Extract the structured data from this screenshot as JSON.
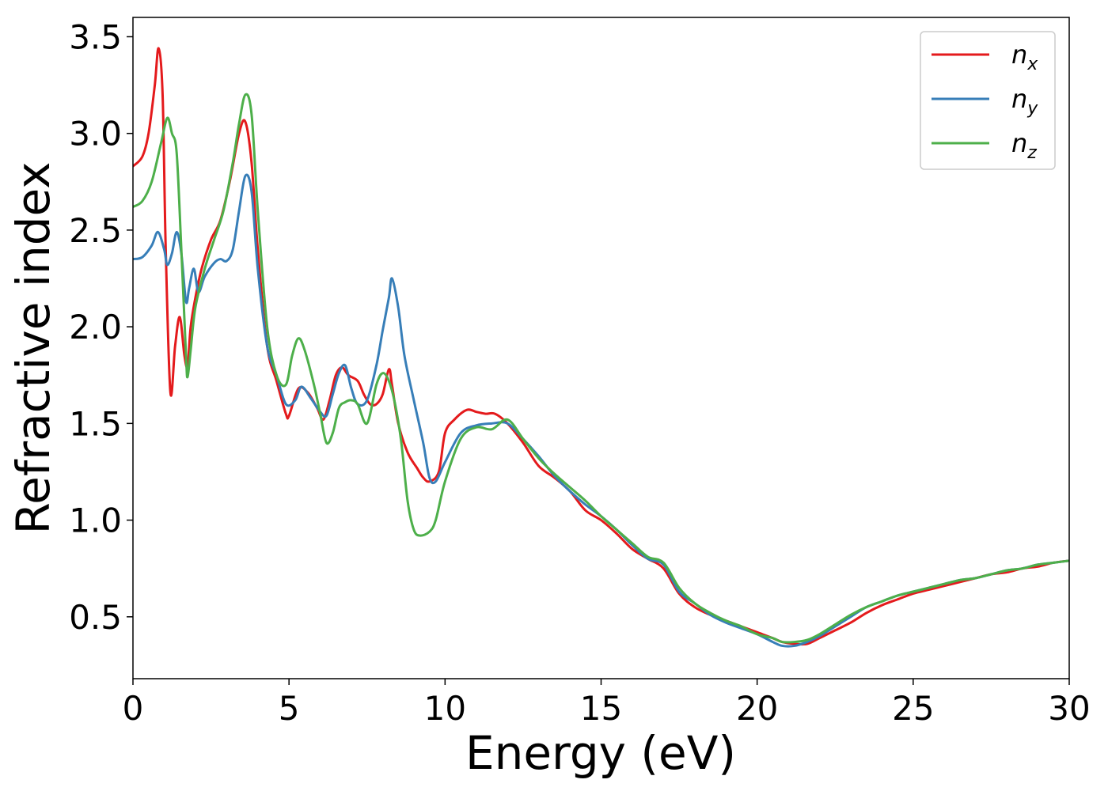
{
  "chart_data": {
    "type": "line",
    "title": "",
    "xlabel": "Energy (eV)",
    "ylabel": "Refractive index",
    "xlim": [
      0,
      30
    ],
    "ylim": [
      0.18,
      3.6
    ],
    "xticks": [
      0,
      5,
      10,
      15,
      20,
      25,
      30
    ],
    "xtick_labels": [
      "0",
      "5",
      "10",
      "15",
      "20",
      "25",
      "30"
    ],
    "yticks": [
      0.5,
      1.0,
      1.5,
      2.0,
      2.5,
      3.0,
      3.5
    ],
    "ytick_labels": [
      "0.5",
      "1.0",
      "1.5",
      "2.0",
      "2.5",
      "3.0",
      "3.5"
    ],
    "grid": false,
    "legend_position": "top-right",
    "series": [
      {
        "name": "n_x",
        "label_base": "n",
        "label_sub": "x",
        "color": "#e41a1c",
        "x": [
          0,
          0.3,
          0.5,
          0.7,
          0.82,
          0.95,
          1.05,
          1.2,
          1.35,
          1.5,
          1.65,
          1.75,
          1.85,
          2.0,
          2.2,
          2.5,
          2.8,
          3.1,
          3.4,
          3.6,
          3.8,
          4.0,
          4.3,
          4.6,
          4.9,
          5.0,
          5.3,
          5.6,
          5.9,
          6.1,
          6.3,
          6.5,
          6.7,
          6.9,
          7.2,
          7.4,
          7.6,
          7.8,
          8.0,
          8.2,
          8.3,
          8.5,
          8.8,
          9.1,
          9.3,
          9.5,
          9.8,
          10.0,
          10.3,
          10.7,
          11.0,
          11.3,
          11.6,
          12.0,
          12.5,
          13.0,
          13.5,
          14.0,
          14.5,
          15.0,
          15.5,
          16.0,
          16.5,
          17.0,
          17.5,
          18.0,
          18.5,
          19.0,
          19.5,
          20.0,
          20.5,
          20.8,
          21.2,
          21.6,
          22.0,
          22.5,
          23.0,
          23.5,
          24.0,
          24.5,
          25.0,
          25.5,
          26.0,
          26.5,
          27.0,
          27.5,
          28.0,
          28.5,
          29.0,
          29.5,
          30.0
        ],
        "y": [
          2.83,
          2.88,
          3.0,
          3.25,
          3.44,
          3.2,
          2.4,
          1.66,
          1.9,
          2.05,
          1.85,
          1.8,
          2.0,
          2.15,
          2.3,
          2.45,
          2.55,
          2.75,
          3.0,
          3.06,
          2.85,
          2.4,
          1.9,
          1.72,
          1.55,
          1.54,
          1.68,
          1.66,
          1.58,
          1.52,
          1.62,
          1.75,
          1.79,
          1.75,
          1.72,
          1.65,
          1.6,
          1.6,
          1.65,
          1.78,
          1.7,
          1.5,
          1.35,
          1.27,
          1.22,
          1.2,
          1.25,
          1.45,
          1.52,
          1.57,
          1.56,
          1.55,
          1.55,
          1.5,
          1.4,
          1.28,
          1.22,
          1.15,
          1.05,
          1.0,
          0.93,
          0.85,
          0.8,
          0.75,
          0.62,
          0.55,
          0.51,
          0.48,
          0.45,
          0.42,
          0.39,
          0.37,
          0.36,
          0.36,
          0.39,
          0.43,
          0.47,
          0.52,
          0.56,
          0.59,
          0.62,
          0.64,
          0.66,
          0.68,
          0.7,
          0.72,
          0.73,
          0.75,
          0.76,
          0.78,
          0.79
        ]
      },
      {
        "name": "n_y",
        "label_base": "n",
        "label_sub": "y",
        "color": "#377eb8",
        "x": [
          0,
          0.3,
          0.6,
          0.8,
          1.0,
          1.1,
          1.25,
          1.4,
          1.55,
          1.7,
          1.8,
          1.95,
          2.1,
          2.3,
          2.6,
          2.8,
          3.0,
          3.2,
          3.4,
          3.6,
          3.8,
          4.0,
          4.3,
          4.6,
          4.9,
          5.2,
          5.4,
          5.7,
          6.0,
          6.2,
          6.4,
          6.6,
          6.8,
          7.0,
          7.2,
          7.5,
          7.8,
          8.0,
          8.2,
          8.3,
          8.5,
          8.7,
          9.0,
          9.3,
          9.5,
          9.7,
          10.0,
          10.5,
          11.0,
          11.5,
          12.0,
          12.5,
          13.0,
          13.5,
          14.0,
          14.5,
          15.0,
          15.5,
          16.0,
          16.5,
          17.0,
          17.5,
          18.0,
          18.5,
          19.0,
          19.5,
          20.0,
          20.5,
          20.8,
          21.2,
          21.6,
          22.0,
          22.5,
          23.0,
          23.5,
          24.0,
          24.5,
          25.0,
          25.5,
          26.0,
          26.5,
          27.0,
          27.5,
          28.0,
          28.5,
          29.0,
          29.5,
          30.0
        ],
        "y": [
          2.35,
          2.36,
          2.42,
          2.49,
          2.4,
          2.32,
          2.38,
          2.49,
          2.38,
          2.13,
          2.2,
          2.3,
          2.18,
          2.26,
          2.33,
          2.35,
          2.34,
          2.4,
          2.6,
          2.78,
          2.7,
          2.3,
          1.9,
          1.75,
          1.6,
          1.62,
          1.69,
          1.63,
          1.56,
          1.54,
          1.65,
          1.76,
          1.8,
          1.68,
          1.6,
          1.62,
          1.8,
          1.98,
          2.15,
          2.25,
          2.1,
          1.85,
          1.62,
          1.4,
          1.22,
          1.2,
          1.3,
          1.45,
          1.49,
          1.5,
          1.5,
          1.42,
          1.33,
          1.23,
          1.15,
          1.08,
          1.02,
          0.95,
          0.87,
          0.8,
          0.77,
          0.63,
          0.57,
          0.51,
          0.47,
          0.44,
          0.41,
          0.37,
          0.35,
          0.35,
          0.37,
          0.4,
          0.45,
          0.5,
          0.55,
          0.58,
          0.61,
          0.63,
          0.65,
          0.67,
          0.69,
          0.7,
          0.72,
          0.74,
          0.75,
          0.77,
          0.78,
          0.79
        ]
      },
      {
        "name": "n_z",
        "label_base": "n",
        "label_sub": "z",
        "color": "#4daf4a",
        "x": [
          0,
          0.3,
          0.6,
          0.9,
          1.1,
          1.25,
          1.4,
          1.55,
          1.7,
          1.75,
          1.85,
          2.0,
          2.3,
          2.6,
          2.9,
          3.2,
          3.4,
          3.6,
          3.8,
          4.0,
          4.3,
          4.6,
          4.9,
          5.1,
          5.3,
          5.5,
          5.8,
          6.0,
          6.2,
          6.4,
          6.6,
          6.8,
          7.0,
          7.2,
          7.5,
          7.8,
          8.0,
          8.2,
          8.4,
          8.6,
          8.8,
          9.0,
          9.2,
          9.5,
          9.7,
          10.0,
          10.5,
          11.0,
          11.5,
          12.0,
          12.5,
          13.0,
          13.5,
          14.0,
          14.5,
          15.0,
          15.5,
          16.0,
          16.5,
          17.0,
          17.5,
          18.0,
          18.5,
          19.0,
          19.5,
          20.0,
          20.5,
          20.8,
          21.2,
          21.6,
          22.0,
          22.5,
          23.0,
          23.5,
          24.0,
          24.5,
          25.0,
          25.5,
          26.0,
          26.5,
          27.0,
          27.5,
          28.0,
          28.5,
          29.0,
          29.5,
          30.0
        ],
        "y": [
          2.62,
          2.65,
          2.75,
          2.95,
          3.08,
          3.0,
          2.9,
          2.4,
          1.85,
          1.74,
          1.88,
          2.1,
          2.3,
          2.45,
          2.6,
          2.85,
          3.05,
          3.2,
          3.1,
          2.6,
          2.0,
          1.75,
          1.7,
          1.85,
          1.94,
          1.88,
          1.7,
          1.55,
          1.4,
          1.45,
          1.58,
          1.61,
          1.62,
          1.6,
          1.5,
          1.7,
          1.76,
          1.72,
          1.6,
          1.4,
          1.1,
          0.95,
          0.92,
          0.94,
          1.0,
          1.2,
          1.42,
          1.48,
          1.47,
          1.52,
          1.42,
          1.32,
          1.24,
          1.17,
          1.1,
          1.02,
          0.95,
          0.88,
          0.81,
          0.78,
          0.65,
          0.57,
          0.52,
          0.48,
          0.45,
          0.41,
          0.39,
          0.37,
          0.37,
          0.38,
          0.41,
          0.46,
          0.51,
          0.55,
          0.58,
          0.61,
          0.63,
          0.65,
          0.67,
          0.69,
          0.7,
          0.72,
          0.74,
          0.75,
          0.77,
          0.78,
          0.79
        ]
      }
    ]
  }
}
